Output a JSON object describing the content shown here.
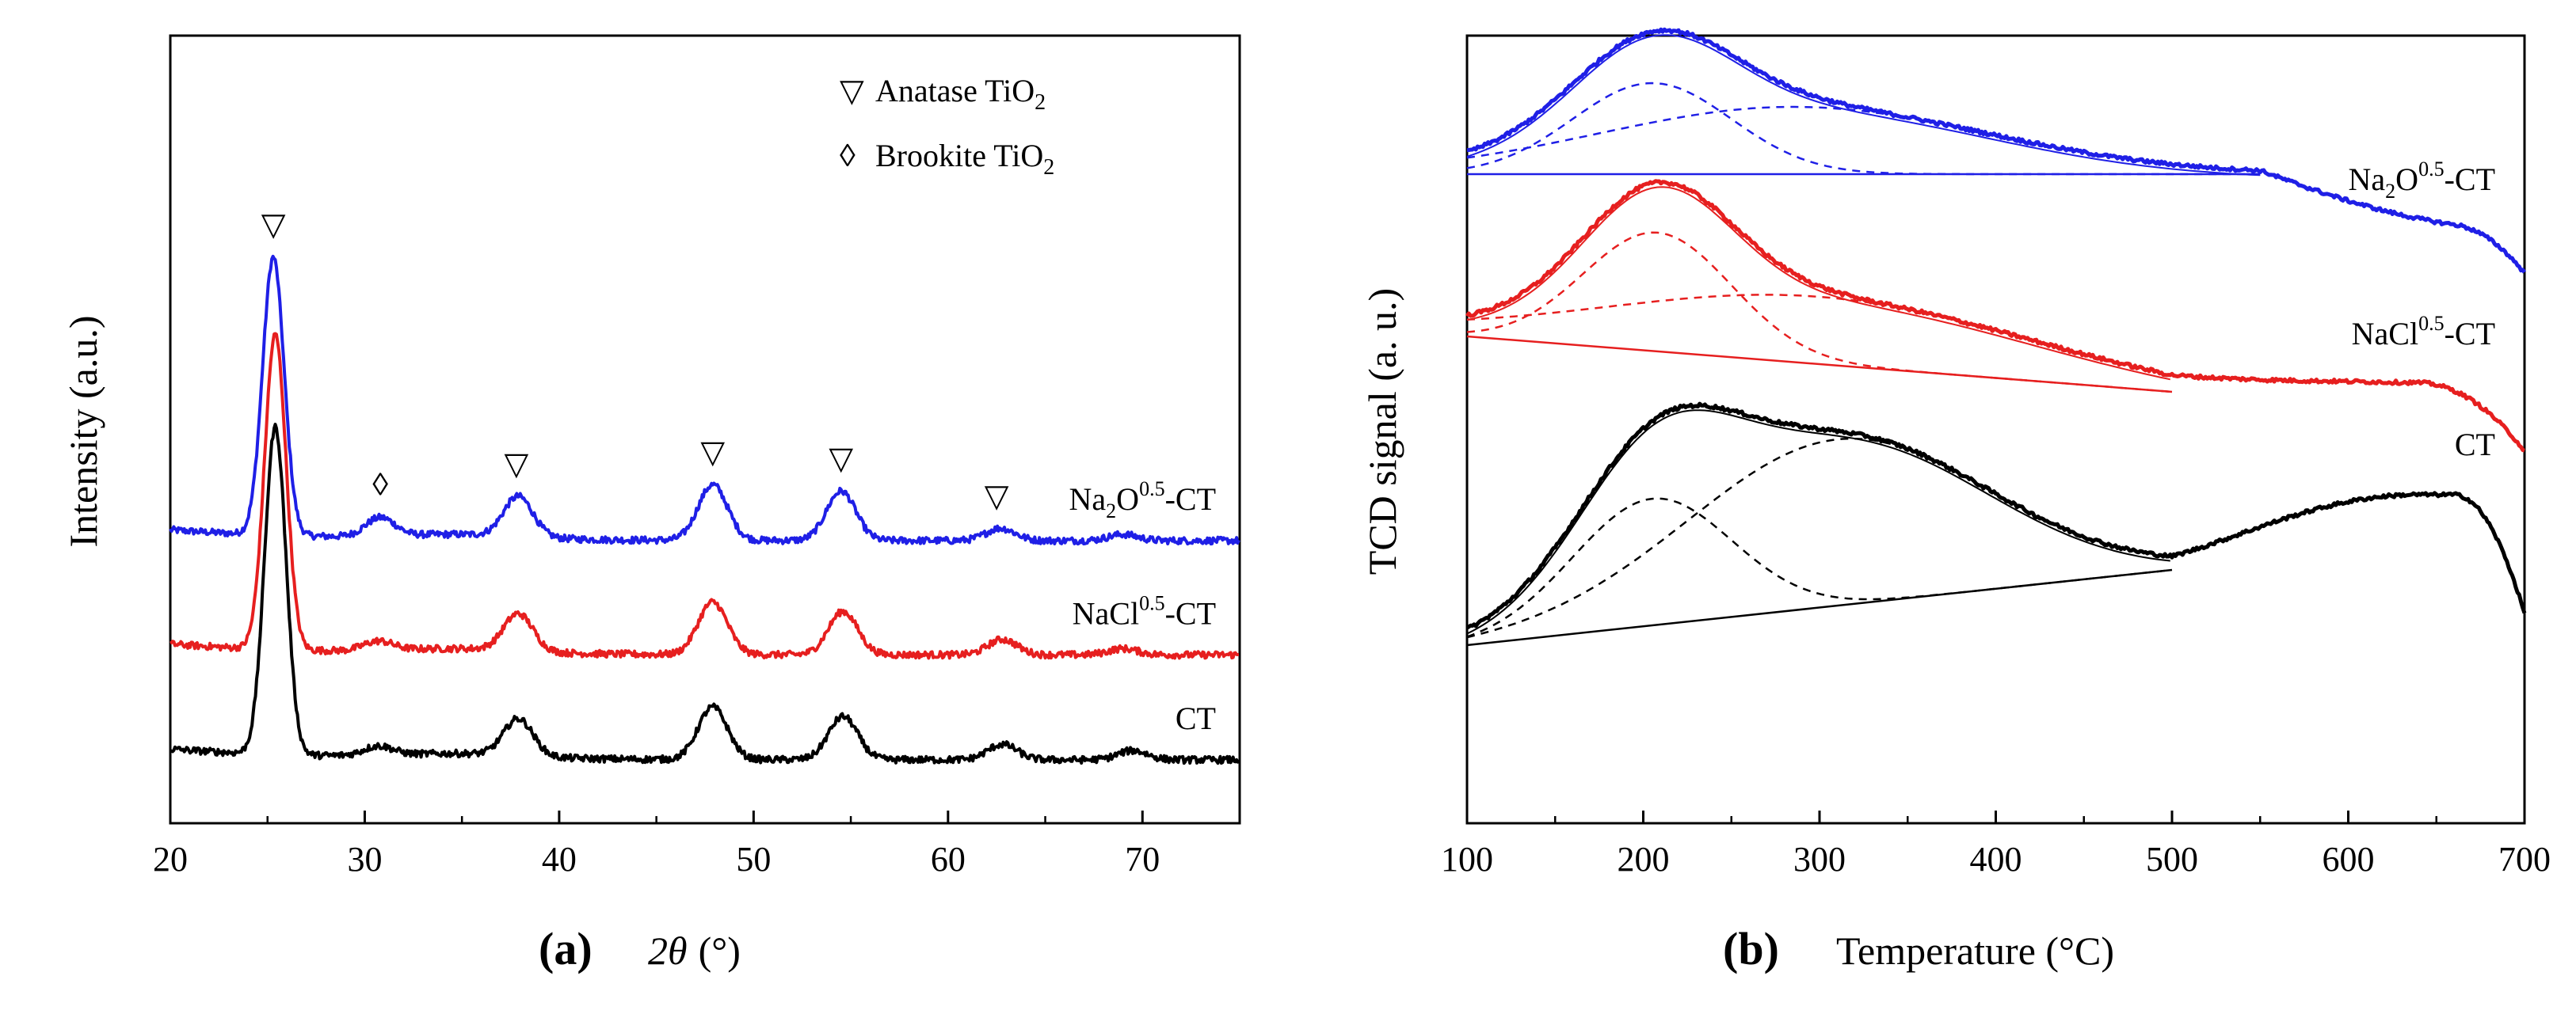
{
  "chart_data": [
    {
      "type": "line",
      "panel_label": "(a)",
      "xlabel_symbol": "2θ",
      "xlabel_unit": "(°)",
      "ylabel": "Intensity (a.u.)",
      "xlim": [
        20,
        75
      ],
      "xticks": [
        20,
        30,
        40,
        50,
        60,
        70
      ],
      "grid": false,
      "y_ticks_shown": false,
      "legend_position": "top-right",
      "legend": [
        {
          "marker": "▽",
          "text": "Anatase TiO",
          "sub": "2"
        },
        {
          "marker": "◊",
          "text": "Brookite TiO",
          "sub": "2"
        }
      ],
      "peak_markers": [
        {
          "x": 25.3,
          "marker": "▽"
        },
        {
          "x": 30.8,
          "marker": "◊"
        },
        {
          "x": 37.8,
          "marker": "▽"
        },
        {
          "x": 47.9,
          "marker": "▽"
        },
        {
          "x": 54.5,
          "marker": "▽"
        },
        {
          "x": 62.5,
          "marker": "▽"
        }
      ],
      "series": [
        {
          "name": "Na2O0.5-CT",
          "label_parts": [
            "Na",
            "2",
            "O",
            "0.5",
            "-CT"
          ],
          "color": "#1f1fe6",
          "baseline": 8.0,
          "peaks": [
            [
              25.3,
              9.0
            ],
            [
              30.8,
              0.6
            ],
            [
              37.9,
              1.3
            ],
            [
              47.9,
              1.8
            ],
            [
              54.5,
              1.6
            ],
            [
              62.7,
              0.4
            ],
            [
              69.0,
              0.2
            ]
          ]
        },
        {
          "name": "NaCl0.5-CT",
          "label_parts": [
            "NaCl",
            "0.5",
            "-CT"
          ],
          "color": "#e61f1f",
          "baseline": 4.3,
          "peaks": [
            [
              25.4,
              10.2
            ],
            [
              30.7,
              0.3
            ],
            [
              37.9,
              1.2
            ],
            [
              47.9,
              1.7
            ],
            [
              54.6,
              1.4
            ],
            [
              62.8,
              0.5
            ],
            [
              69.0,
              0.2
            ]
          ]
        },
        {
          "name": "CT",
          "label_parts": [
            "CT"
          ],
          "color": "#000000",
          "baseline": 0.9,
          "peaks": [
            [
              25.4,
              10.6
            ],
            [
              30.7,
              0.3
            ],
            [
              37.9,
              1.2
            ],
            [
              47.9,
              1.7
            ],
            [
              54.6,
              1.4
            ],
            [
              62.8,
              0.5
            ],
            [
              69.5,
              0.3
            ]
          ]
        }
      ]
    },
    {
      "type": "line",
      "panel_label": "(b)",
      "xlabel": "Temperature (°C)",
      "ylabel": "TCD signal (a. u.)",
      "xlim": [
        100,
        700
      ],
      "xticks": [
        100,
        200,
        300,
        400,
        500,
        600,
        700
      ],
      "grid": false,
      "y_ticks_shown": false,
      "fits": "deconvolution: thin line = fitted envelope, dashed lines = Gaussian components, straight line = baseline",
      "series": [
        {
          "name": "Na2O0.5-CT",
          "label_parts": [
            "Na",
            "2",
            "O",
            "0.5",
            "-CT"
          ],
          "color": "#1f1fe6",
          "start_value": 14.5,
          "peaks": [
            [
              205,
              2.3,
              45
            ],
            [
              285,
              1.7,
              110
            ]
          ],
          "plateau": [
            550,
            700,
            14.5,
            13.1
          ],
          "end_drop": [
            660,
            700,
            12.0
          ]
        },
        {
          "name": "NaCl0.5-CT",
          "label_parts": [
            "NaCl",
            "0.5",
            "-CT"
          ],
          "color": "#e61f1f",
          "start_value": 10.4,
          "peaks": [
            [
              208,
              3.0,
              42
            ],
            [
              300,
              1.7,
              120
            ]
          ],
          "plateau": [
            500,
            630,
            9.0,
            9.2
          ],
          "end_drop": [
            640,
            700,
            7.5
          ]
        },
        {
          "name": "CT",
          "label_parts": [
            "CT"
          ],
          "color": "#000000",
          "start_value": 2.6,
          "peaks": [
            [
              205,
              3.2,
              45
            ],
            [
              310,
              4.2,
              85
            ]
          ],
          "plateau": [
            500,
            640,
            4.5,
            6.4
          ],
          "end_drop": [
            660,
            700,
            3.4
          ]
        }
      ]
    }
  ]
}
